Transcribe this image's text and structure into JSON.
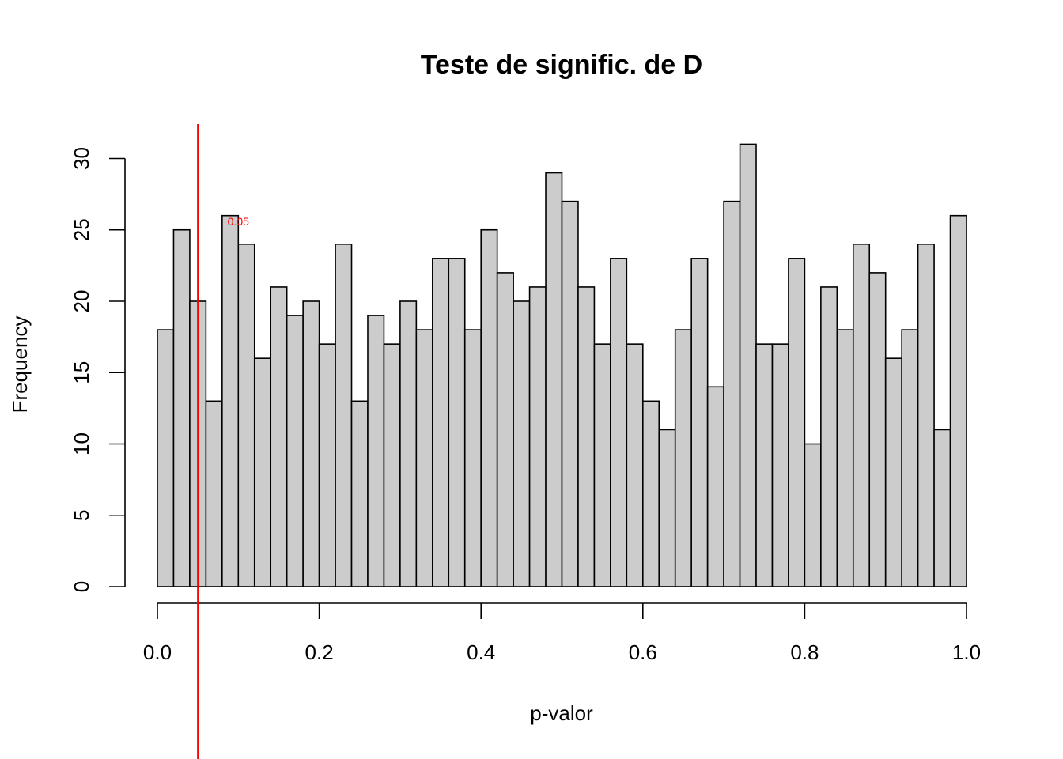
{
  "chart_data": {
    "type": "bar",
    "subtype": "histogram",
    "title": "Teste de signific. de D",
    "xlabel": "p-valor",
    "ylabel": "Frequency",
    "bin_width": 0.02,
    "bin_start": 0.0,
    "values": [
      18,
      25,
      20,
      13,
      26,
      24,
      16,
      21,
      19,
      20,
      17,
      24,
      13,
      19,
      17,
      20,
      18,
      23,
      23,
      18,
      25,
      22,
      20,
      21,
      29,
      27,
      21,
      17,
      23,
      17,
      13,
      11,
      18,
      23,
      14,
      27,
      31,
      17,
      17,
      23,
      10,
      21,
      18,
      24,
      22,
      16,
      18,
      24,
      11,
      26
    ],
    "xlim": [
      0.0,
      1.0
    ],
    "ylim": [
      0,
      30
    ],
    "x_ticks": [
      "0.0",
      "0.2",
      "0.4",
      "0.6",
      "0.8",
      "1.0"
    ],
    "y_ticks": [
      "0",
      "5",
      "10",
      "15",
      "20",
      "25",
      "30"
    ],
    "bar_color": "#cccccc",
    "grid": false,
    "reference_line": {
      "x": 0.05,
      "label": "0.05",
      "color": "#ff0000"
    }
  }
}
